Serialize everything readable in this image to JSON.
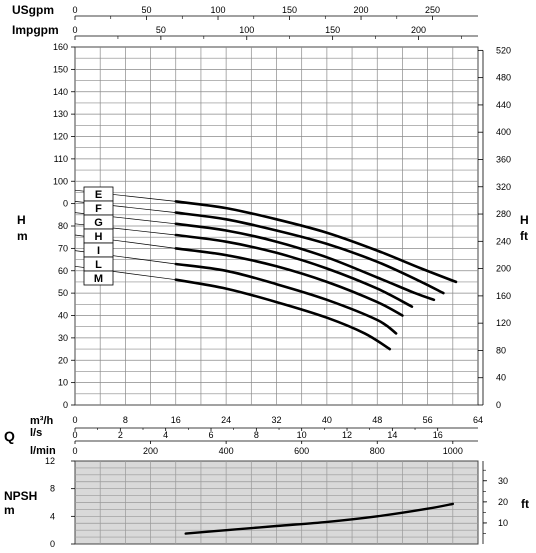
{
  "labels": {
    "usgpm": "USgpm",
    "impgpm": "Impgpm",
    "h_left": "H",
    "m_left": "m",
    "h_right": "H",
    "ft_right": "ft",
    "m3h": "m³/h",
    "ls": "l/s",
    "q": "Q",
    "lmin": "l/min",
    "npsh": "NPSH",
    "npsh_m": "m",
    "npsh_ft": "ft"
  },
  "chart_data": [
    {
      "type": "line",
      "title": "",
      "xlabel": "Q",
      "ylabel": "H m",
      "xlim": [
        0,
        64
      ],
      "ylim": [
        0,
        160
      ],
      "x_unit": "m³/h",
      "grid": true,
      "axis_ticks": {
        "m3h": [
          "0",
          "8",
          "16",
          "24",
          "32",
          "40",
          "48",
          "56",
          "64"
        ],
        "ls": [
          "0",
          "2",
          "4",
          "6",
          "8",
          "10",
          "12",
          "14",
          "16"
        ],
        "usgpm": [
          "0",
          "50",
          "100",
          "150",
          "200",
          "250"
        ],
        "impgpm": [
          "0",
          "50",
          "100",
          "150",
          "200"
        ],
        "h_m": [
          "0",
          "10",
          "20",
          "30",
          "40",
          "50",
          "60",
          "70",
          "80",
          "0",
          "100",
          "110",
          "120",
          "130",
          "140",
          "150",
          "160"
        ],
        "h_ft": [
          "0",
          "40",
          "80",
          "120",
          "160",
          "200",
          "240",
          "280",
          "320",
          "360",
          "400",
          "440",
          "480",
          "520"
        ]
      },
      "series": [
        {
          "name": "E",
          "x": [
            0,
            16,
            24,
            32,
            40,
            48,
            55,
            60.5
          ],
          "y": [
            96,
            91,
            88,
            83,
            77,
            69,
            61,
            55
          ]
        },
        {
          "name": "F",
          "x": [
            0,
            16,
            24,
            32,
            40,
            48,
            55,
            58.5
          ],
          "y": [
            91,
            86,
            83,
            78,
            72,
            64,
            55,
            50
          ]
        },
        {
          "name": "G",
          "x": [
            0,
            16,
            24,
            32,
            40,
            48,
            54,
            57
          ],
          "y": [
            86,
            81,
            78,
            73,
            66,
            57,
            50,
            47
          ]
        },
        {
          "name": "H",
          "x": [
            0,
            16,
            24,
            32,
            40,
            48,
            53.5
          ],
          "y": [
            81,
            76,
            73,
            68,
            61,
            52,
            44
          ]
        },
        {
          "name": "I",
          "x": [
            0,
            16,
            24,
            32,
            40,
            48,
            52
          ],
          "y": [
            76,
            70,
            67,
            62,
            55,
            46,
            40
          ]
        },
        {
          "name": "L",
          "x": [
            0,
            16,
            24,
            32,
            40,
            48,
            51
          ],
          "y": [
            69,
            63,
            60,
            54,
            47,
            38,
            32
          ]
        },
        {
          "name": "M",
          "x": [
            0,
            16,
            24,
            32,
            40,
            46,
            50
          ],
          "y": [
            62,
            56,
            52,
            46,
            39,
            32,
            25
          ]
        }
      ]
    },
    {
      "type": "line",
      "title": "",
      "xlabel": "l/min",
      "ylabel": "NPSH m",
      "xlim": [
        0,
        1067
      ],
      "ylim": [
        0,
        12
      ],
      "grid": true,
      "axis_ticks": {
        "lmin": [
          "0",
          "200",
          "400",
          "600",
          "800",
          "1000"
        ],
        "npsh_m": [
          "0",
          "4",
          "8",
          "12"
        ],
        "npsh_ft": [
          "10",
          "20",
          "30"
        ]
      },
      "series": [
        {
          "name": "",
          "x": [
            293,
            400,
            533,
            667,
            800,
            933,
            1000
          ],
          "y": [
            1.5,
            2.0,
            2.6,
            3.2,
            4.0,
            5.1,
            5.8
          ]
        }
      ]
    }
  ]
}
